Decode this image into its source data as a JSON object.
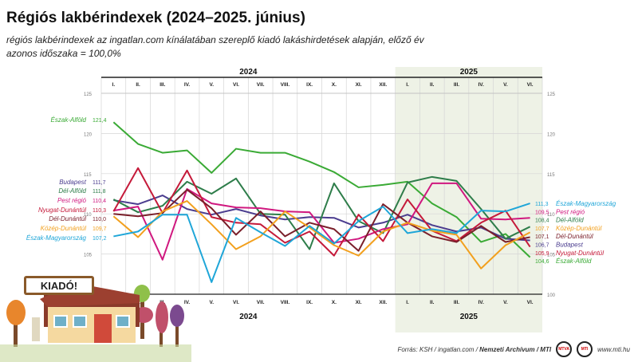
{
  "title": "Régiós lakbérindexek (2024–2025. június)",
  "subtitle": "régiós lakbérindexek az ingatlan.com kínálatában szereplő kiadó lakáshirdetések alapján, előző év azonos időszaka = 100,0%",
  "footer": {
    "source_prefix": "Forrás: KSH / ingatlan.com / ",
    "source_bold": "Nemzeti Archívum / MTI",
    "badge1": "MTVA",
    "badge2": "MTI",
    "url": "www.mti.hu"
  },
  "sign_text": "KIADÓ!",
  "chart_data": {
    "type": "line",
    "title": "Régiós lakbérindexek (2024–2025. június)",
    "years": [
      {
        "label": "2024",
        "months": 12
      },
      {
        "label": "2025",
        "months": 6
      }
    ],
    "categories": [
      "I.",
      "II.",
      "III.",
      "IV.",
      "V.",
      "VI.",
      "VII.",
      "VIII.",
      "IX.",
      "X.",
      "XI.",
      "XII.",
      "I.",
      "II.",
      "III.",
      "IV.",
      "V.",
      "VI."
    ],
    "ylim": [
      100,
      125
    ],
    "yticks": [
      100,
      105,
      110,
      115,
      120,
      125
    ],
    "grid": true,
    "shaded_year": "2025",
    "series": [
      {
        "name": "Észak-Alföld",
        "color": "#3aaa35",
        "start_label": "121,4",
        "end_label": "104,6",
        "values": [
          121.4,
          118.7,
          117.6,
          117.9,
          115.1,
          118.1,
          117.6,
          117.6,
          116.5,
          115.2,
          113.3,
          113.6,
          114.0,
          111.3,
          109.6,
          106.5,
          107.5,
          104.6
        ]
      },
      {
        "name": "Budapest",
        "color": "#4b3d8f",
        "start_label": "111,7",
        "end_label": "106,7",
        "values": [
          111.7,
          111.2,
          112.3,
          110.6,
          109.9,
          110.6,
          109.8,
          109.3,
          109.6,
          109.5,
          108.3,
          108.9,
          109.9,
          108.6,
          107.8,
          108.3,
          106.9,
          106.7
        ]
      },
      {
        "name": "Dél-Alföld",
        "color": "#2e7d4a",
        "start_label": "111,8",
        "end_label": "108,4",
        "values": [
          111.8,
          110.2,
          111.0,
          114.0,
          112.5,
          114.4,
          110.0,
          109.9,
          105.6,
          113.8,
          109.1,
          107.6,
          113.9,
          114.6,
          114.1,
          110.6,
          106.9,
          108.4
        ]
      },
      {
        "name": "Pest régió",
        "color": "#d0187f",
        "start_label": "110,4",
        "end_label": "109,5",
        "values": [
          110.4,
          110.9,
          104.3,
          113.1,
          111.3,
          110.8,
          110.7,
          110.3,
          110.2,
          106.4,
          106.9,
          108.1,
          108.7,
          113.8,
          113.8,
          109.4,
          109.3,
          109.5
        ]
      },
      {
        "name": "Nyugat-Dunántúl",
        "color": "#c51a3a",
        "start_label": "110,3",
        "end_label": "105,9",
        "values": [
          110.3,
          115.7,
          110.1,
          115.4,
          109.6,
          108.9,
          108.7,
          106.4,
          107.8,
          104.8,
          109.9,
          106.6,
          111.8,
          107.9,
          106.6,
          108.9,
          110.4,
          105.9
        ]
      },
      {
        "name": "Dél-Dunántúl",
        "color": "#7a1f2a",
        "start_label": "110,0",
        "end_label": "107,1",
        "values": [
          110.0,
          109.7,
          110.1,
          113.0,
          110.7,
          107.4,
          110.3,
          107.2,
          108.9,
          108.1,
          105.4,
          111.2,
          108.9,
          107.2,
          106.5,
          108.5,
          106.5,
          107.1
        ]
      },
      {
        "name": "Közép-Dunántúl",
        "color": "#f2a01e",
        "start_label": "109,7",
        "end_label": "107,7",
        "values": [
          109.7,
          107.1,
          110.3,
          111.6,
          108.7,
          105.6,
          107.2,
          110.3,
          108.3,
          106.1,
          104.8,
          107.8,
          108.9,
          107.9,
          107.4,
          103.2,
          106.1,
          107.7
        ]
      },
      {
        "name": "Észak-Magyarország",
        "color": "#1fa6d8",
        "start_label": "107,2",
        "end_label": "111,3",
        "values": [
          107.2,
          107.8,
          109.9,
          109.9,
          101.5,
          109.5,
          107.7,
          106.0,
          108.5,
          106.3,
          109.1,
          110.9,
          107.6,
          108.1,
          107.6,
          110.4,
          110.3,
          111.3
        ]
      }
    ]
  }
}
